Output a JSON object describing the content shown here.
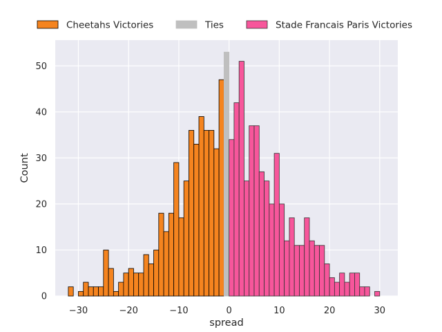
{
  "chart_data": {
    "type": "bar",
    "title": "",
    "xlabel": "spread",
    "ylabel": "Count",
    "xlim": [
      -34.6,
      33.6
    ],
    "ylim": [
      0,
      55.6
    ],
    "xticks": [
      -30,
      -20,
      -10,
      0,
      10,
      20,
      30
    ],
    "yticks": [
      0,
      10,
      20,
      30,
      40,
      50
    ],
    "xtick_labels": [
      "−30",
      "−20",
      "−10",
      "0",
      "10",
      "20",
      "30"
    ],
    "ytick_labels": [
      "0",
      "10",
      "20",
      "30",
      "40",
      "50"
    ],
    "grid": true,
    "legend_position": "top",
    "bin_width": 1,
    "series": [
      {
        "name": "Cheetahs Victories",
        "color": "#f5841f",
        "edgecolor": "#000000",
        "bins": [
          {
            "x": -32,
            "count": 2
          },
          {
            "x": -30,
            "count": 1
          },
          {
            "x": -29,
            "count": 3
          },
          {
            "x": -28,
            "count": 2
          },
          {
            "x": -27,
            "count": 2
          },
          {
            "x": -26,
            "count": 2
          },
          {
            "x": -25,
            "count": 10
          },
          {
            "x": -24,
            "count": 6
          },
          {
            "x": -23,
            "count": 1
          },
          {
            "x": -22,
            "count": 3
          },
          {
            "x": -21,
            "count": 5
          },
          {
            "x": -20,
            "count": 6
          },
          {
            "x": -19,
            "count": 5
          },
          {
            "x": -18,
            "count": 5
          },
          {
            "x": -17,
            "count": 9
          },
          {
            "x": -16,
            "count": 7
          },
          {
            "x": -15,
            "count": 10
          },
          {
            "x": -14,
            "count": 18
          },
          {
            "x": -13,
            "count": 14
          },
          {
            "x": -12,
            "count": 18
          },
          {
            "x": -11,
            "count": 29
          },
          {
            "x": -10,
            "count": 17
          },
          {
            "x": -9,
            "count": 25
          },
          {
            "x": -8,
            "count": 36
          },
          {
            "x": -7,
            "count": 33
          },
          {
            "x": -6,
            "count": 39
          },
          {
            "x": -5,
            "count": 36
          },
          {
            "x": -4,
            "count": 36
          },
          {
            "x": -3,
            "count": 32
          },
          {
            "x": -2,
            "count": 47
          }
        ]
      },
      {
        "name": "Ties",
        "color": "#bfbfbf",
        "edgecolor": "#bfbfbf",
        "bins": [
          {
            "x": -1,
            "count": 53
          }
        ]
      },
      {
        "name": "Stade Francais Paris Victories",
        "color": "#f7569b",
        "edgecolor": "#333333",
        "bins": [
          {
            "x": 0,
            "count": 34
          },
          {
            "x": 1,
            "count": 42
          },
          {
            "x": 2,
            "count": 51
          },
          {
            "x": 3,
            "count": 25
          },
          {
            "x": 4,
            "count": 37
          },
          {
            "x": 5,
            "count": 37
          },
          {
            "x": 6,
            "count": 27
          },
          {
            "x": 7,
            "count": 25
          },
          {
            "x": 8,
            "count": 20
          },
          {
            "x": 9,
            "count": 31
          },
          {
            "x": 10,
            "count": 20
          },
          {
            "x": 11,
            "count": 12
          },
          {
            "x": 12,
            "count": 17
          },
          {
            "x": 13,
            "count": 11
          },
          {
            "x": 14,
            "count": 11
          },
          {
            "x": 15,
            "count": 17
          },
          {
            "x": 16,
            "count": 12
          },
          {
            "x": 17,
            "count": 11
          },
          {
            "x": 18,
            "count": 11
          },
          {
            "x": 19,
            "count": 7
          },
          {
            "x": 20,
            "count": 4
          },
          {
            "x": 21,
            "count": 3
          },
          {
            "x": 22,
            "count": 5
          },
          {
            "x": 23,
            "count": 3
          },
          {
            "x": 24,
            "count": 5
          },
          {
            "x": 25,
            "count": 5
          },
          {
            "x": 26,
            "count": 2
          },
          {
            "x": 27,
            "count": 2
          },
          {
            "x": 29,
            "count": 1
          }
        ]
      }
    ]
  }
}
